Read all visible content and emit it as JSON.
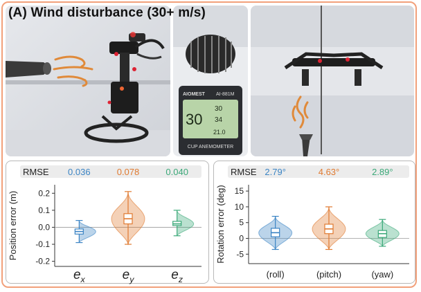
{
  "figure": {
    "title": "(A) Wind disturbance (30+ m/s)",
    "anemometer_display": {
      "brand": "AIOMEST",
      "model": "AI-881M",
      "big_reading": "30",
      "small_reading_1": "30",
      "small_reading_2": "34",
      "small_reading_3": "21.0",
      "label": "CUP ANEMOMETER"
    }
  },
  "colors": {
    "ex": "#3b84c4",
    "ey": "#e07a30",
    "ez": "#3aa878",
    "frame": "#f2a07a"
  },
  "chart_data": [
    {
      "type": "violin",
      "title": "",
      "ylabel": "Position error (m)",
      "ylim": [
        -0.23,
        0.25
      ],
      "yticks": [
        -0.2,
        -0.1,
        0.0,
        0.1,
        0.2
      ],
      "ytick_labels": [
        "-0.2",
        "-0.1",
        "0.0",
        "0.1",
        "0.2"
      ],
      "rmse_label": "RMSE",
      "categories": [
        "e_x",
        "e_y",
        "e_z"
      ],
      "rmse": [
        "0.036",
        "0.078",
        "0.040"
      ],
      "series": [
        {
          "color": "#3b84c4",
          "min": -0.09,
          "q1": -0.04,
          "median": -0.025,
          "q3": -0.01,
          "max": 0.04
        },
        {
          "color": "#e07a30",
          "min": -0.1,
          "q1": 0.02,
          "median": 0.05,
          "q3": 0.08,
          "max": 0.21
        },
        {
          "color": "#3aa878",
          "min": -0.05,
          "q1": 0.01,
          "median": 0.02,
          "q3": 0.035,
          "max": 0.1
        }
      ]
    },
    {
      "type": "violin",
      "title": "",
      "ylabel": "Rotation error (deg)",
      "ylim": [
        -8,
        17
      ],
      "yticks": [
        -5,
        0,
        5,
        10,
        15
      ],
      "ytick_labels": [
        "-5",
        "0",
        "5",
        "10",
        "15"
      ],
      "rmse_label": "RMSE",
      "categories": [
        "(roll)",
        "(pitch)",
        "(yaw)"
      ],
      "rmse": [
        "2.79°",
        "4.63°",
        "2.89°"
      ],
      "series": [
        {
          "color": "#3b84c4",
          "min": -3.5,
          "q1": 0.5,
          "median": 1.8,
          "q3": 3.2,
          "max": 7.0
        },
        {
          "color": "#e07a30",
          "min": -3.5,
          "q1": 1.5,
          "median": 3.0,
          "q3": 4.5,
          "max": 10.0
        },
        {
          "color": "#3aa878",
          "min": -2.5,
          "q1": 0.3,
          "median": 1.5,
          "q3": 2.5,
          "max": 6.0
        }
      ]
    }
  ]
}
